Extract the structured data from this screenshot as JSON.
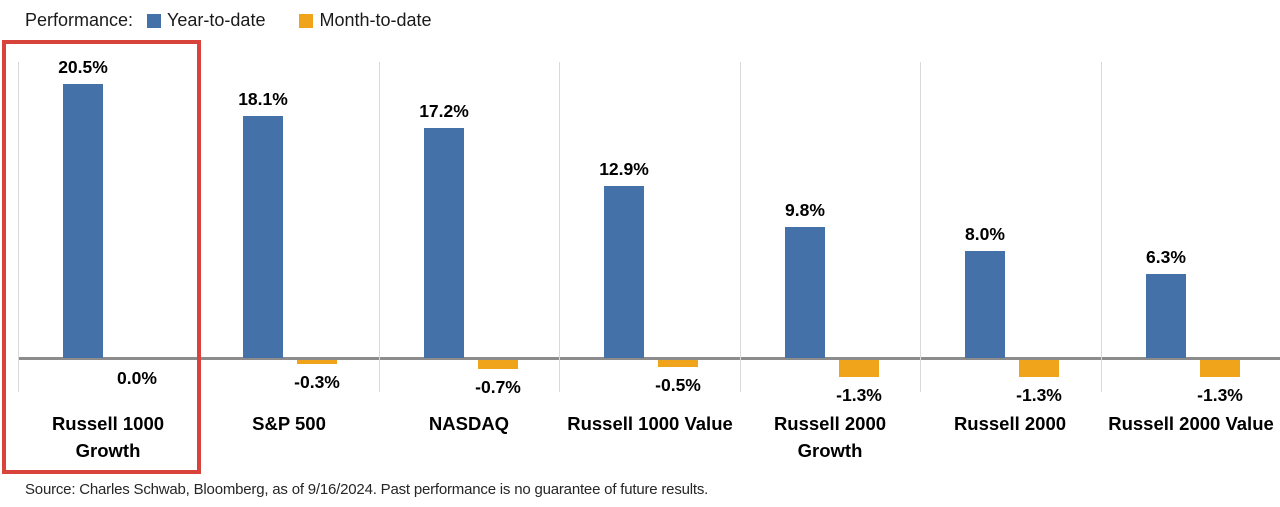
{
  "legend": {
    "title": "Performance:",
    "items": [
      {
        "label": "Year-to-date",
        "color": "#4471a8"
      },
      {
        "label": "Month-to-date",
        "color": "#f0a41b"
      }
    ]
  },
  "chart_data": {
    "type": "bar",
    "title": "Performance: Year-to-date vs Month-to-date",
    "categories": [
      "Russell 1000 Growth",
      "S&P 500",
      "NASDAQ",
      "Russell 1000 Value",
      "Russell 2000 Growth",
      "Russell 2000",
      "Russell 2000 Value"
    ],
    "series": [
      {
        "name": "Year-to-date",
        "color": "#4471a8",
        "values": [
          20.5,
          18.1,
          17.2,
          12.9,
          9.8,
          8.0,
          6.3
        ],
        "labels": [
          "20.5%",
          "18.1%",
          "17.2%",
          "12.9%",
          "9.8%",
          "8.0%",
          "6.3%"
        ]
      },
      {
        "name": "Month-to-date",
        "color": "#f0a41b",
        "values": [
          0.0,
          -0.3,
          -0.7,
          -0.5,
          -1.3,
          -1.3,
          -1.3
        ],
        "labels": [
          "0.0%",
          "-0.3%",
          "-0.7%",
          "-0.5%",
          "-1.3%",
          "-1.3%",
          "-1.3%"
        ]
      }
    ],
    "xlabel": "",
    "ylabel": "",
    "ylim": [
      -2,
      22
    ],
    "grid": "vertical-category-separators",
    "legend_position": "top-left",
    "annotations": [
      {
        "type": "highlight-box",
        "target": "Russell 1000 Growth",
        "color": "#d8443c"
      }
    ],
    "axis_color": "#8c8c8c",
    "gridline_color": "#d9d9d9"
  },
  "source_note": "Source: Charles Schwab, Bloomberg, as of 9/16/2024.  Past performance is no guarantee of future results."
}
